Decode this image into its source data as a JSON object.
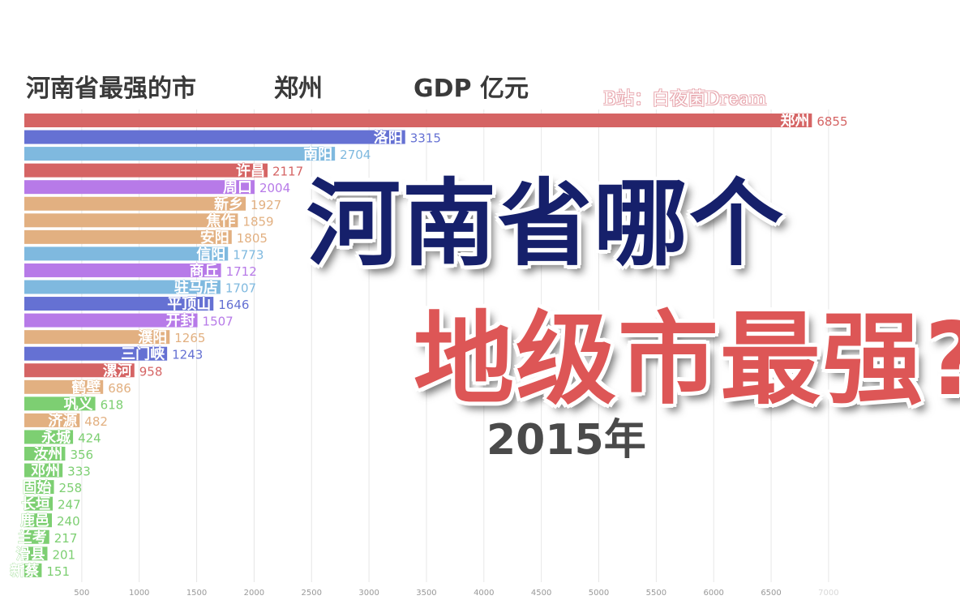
{
  "header": {
    "title": "河南省最强的市",
    "leader": "郑州",
    "unit": "GDP 亿元"
  },
  "watermark": "B站：白夜菌Dream",
  "overlay": {
    "line1": "河南省哪个",
    "line2": "地级市最强?",
    "line1_color": "#16206b",
    "line2_color": "#dd5656"
  },
  "year_label": "2015年",
  "chart_data": {
    "type": "bar",
    "orientation": "horizontal",
    "title": "河南省最强的市",
    "unit": "GDP 亿元",
    "year": "2015年",
    "xlim": [
      0,
      7000
    ],
    "x_ticks": [
      500,
      1000,
      1500,
      2000,
      2500,
      3000,
      3500,
      4000,
      4500,
      5000,
      5500,
      6000,
      6500,
      7000
    ],
    "grid": true,
    "categories": [
      "郑州",
      "洛阳",
      "南阳",
      "许昌",
      "周口",
      "新乡",
      "焦作",
      "安阳",
      "信阳",
      "商丘",
      "驻马店",
      "平顶山",
      "开封",
      "濮阳",
      "三门峡",
      "漯河",
      "鹤壁",
      "巩义",
      "济源",
      "永城",
      "汝州",
      "邓州",
      "固始",
      "长垣",
      "鹿邑",
      "兰考",
      "滑县",
      "新蔡"
    ],
    "values": [
      6855,
      3315,
      2704,
      2117,
      2004,
      1927,
      1859,
      1805,
      1773,
      1712,
      1707,
      1646,
      1507,
      1265,
      1243,
      958,
      686,
      618,
      482,
      424,
      356,
      333,
      258,
      247,
      240,
      217,
      201,
      151
    ],
    "colors": [
      "#d56464",
      "#6571d3",
      "#7fb9df",
      "#d56464",
      "#b77ae8",
      "#e2b081",
      "#e2b081",
      "#e2b081",
      "#7fb9df",
      "#b77ae8",
      "#7fb9df",
      "#6571d3",
      "#b77ae8",
      "#e2b081",
      "#6571d3",
      "#d56464",
      "#e2b081",
      "#7dcf72",
      "#e2b081",
      "#7dcf72",
      "#7dcf72",
      "#7dcf72",
      "#7dcf72",
      "#7dcf72",
      "#7dcf72",
      "#7dcf72",
      "#7dcf72",
      "#7dcf72"
    ]
  }
}
